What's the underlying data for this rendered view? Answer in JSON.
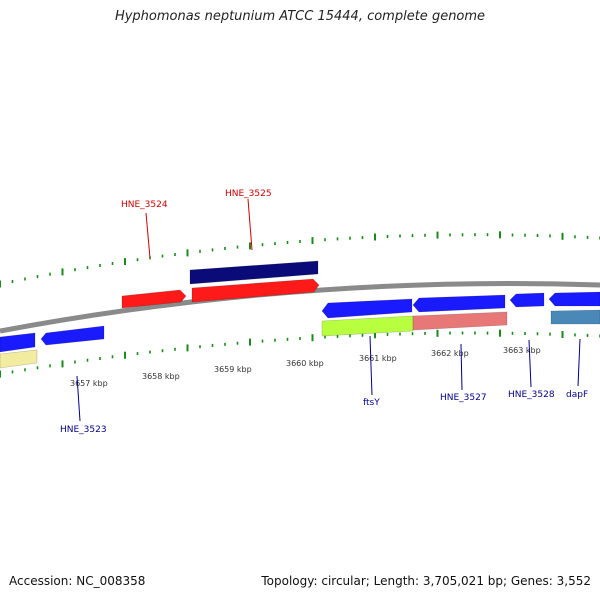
{
  "title": "Hyphomonas neptunium ATCC 15444, complete genome",
  "footer": {
    "accession": "Accession: NC_008358",
    "summary": "Topology: circular; Length: 3,705,021 bp; Genes: 3,552"
  },
  "scale": {
    "unit": "kbp",
    "ticks": [
      "3657 kbp",
      "3658 kbp",
      "3659 kbp",
      "3660 kbp",
      "3661 kbp",
      "3662 kbp",
      "3663 kbp"
    ]
  },
  "labels": {
    "HNE_3524": "HNE_3524",
    "HNE_3525": "HNE_3525",
    "HNE_3523": "HNE_3523",
    "ftsY": "ftsY",
    "HNE_3527": "HNE_3527",
    "HNE_3528": "HNE_3528",
    "dapF": "dapF"
  },
  "colors": {
    "backbone": "#8a8a8a",
    "feature_red": "#ff1a1a",
    "feature_blue": "#1a1aff",
    "feature_navy": "#0a0a78",
    "feature_yellow": "#f2eca0",
    "feature_lime": "#b8ff40",
    "feature_pink": "#e87878",
    "feature_steel": "#4a88b8",
    "tick_green": "#1a8a1a",
    "label_red": "#cc0000",
    "label_blue": "#00008b"
  }
}
